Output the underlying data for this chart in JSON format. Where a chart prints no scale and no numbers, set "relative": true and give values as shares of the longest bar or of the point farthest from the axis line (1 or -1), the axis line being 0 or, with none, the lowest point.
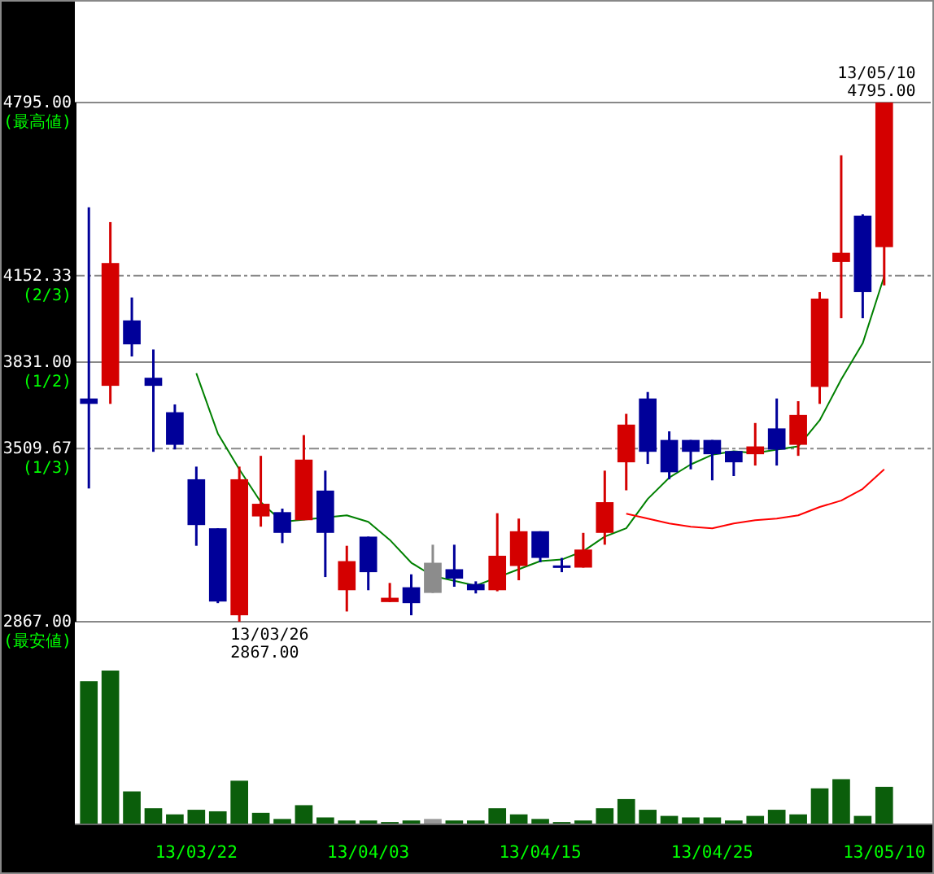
{
  "chart_data": [
    {
      "type": "candlestick",
      "categories": [
        null,
        null,
        null,
        null,
        null,
        null,
        null,
        null,
        null,
        null,
        null,
        null,
        null,
        null,
        null,
        null,
        null,
        null,
        null,
        null,
        null,
        null,
        null,
        null,
        null,
        null,
        null,
        null,
        null,
        null,
        null,
        null,
        null,
        null,
        null,
        null,
        null,
        null
      ],
      "ohlc": [
        [
          3696,
          4406,
          3362,
          3676
        ],
        [
          3743,
          4351,
          3676,
          4199
        ],
        [
          3986,
          4071,
          3852,
          3897
        ],
        [
          3773,
          3878,
          3498,
          3743
        ],
        [
          3645,
          3674,
          3507,
          3524
        ],
        [
          3396,
          3443,
          3149,
          3226
        ],
        [
          3214,
          3214,
          2936,
          2942
        ],
        [
          2891,
          3443,
          2867,
          3396
        ],
        [
          3258,
          3483,
          3220,
          3305
        ],
        [
          3274,
          3287,
          3159,
          3197
        ],
        [
          3244,
          3560,
          3244,
          3469
        ],
        [
          3354,
          3428,
          3033,
          3197
        ],
        [
          2984,
          3149,
          2905,
          3092
        ],
        [
          3183,
          3183,
          2984,
          3051
        ],
        [
          2940,
          3011,
          2940,
          2956
        ],
        [
          2995,
          3043,
          2891,
          2936
        ],
        [
          2974,
          3153,
          2974,
          3086
        ],
        [
          3062,
          3153,
          2997,
          3027
        ],
        [
          3007,
          3017,
          2972,
          2984
        ],
        [
          2984,
          3270,
          2980,
          3112
        ],
        [
          3074,
          3250,
          3021,
          3203
        ],
        [
          3203,
          3203,
          3088,
          3104
        ],
        [
          3076,
          3104,
          3051,
          3072
        ],
        [
          3068,
          3197,
          3068,
          3135
        ],
        [
          3197,
          3428,
          3153,
          3311
        ],
        [
          3459,
          3639,
          3355,
          3599
        ],
        [
          3696,
          3720,
          3453,
          3498
        ],
        [
          3542,
          3574,
          3396,
          3422
        ],
        [
          3542,
          3542,
          3433,
          3498
        ],
        [
          3542,
          3542,
          3392,
          3489
        ],
        [
          3501,
          3501,
          3408,
          3459
        ],
        [
          3489,
          3605,
          3447,
          3518
        ],
        [
          3585,
          3696,
          3447,
          3506
        ],
        [
          3524,
          3686,
          3483,
          3635
        ],
        [
          3739,
          4091,
          3676,
          4067
        ],
        [
          4203,
          4599,
          3994,
          4237
        ],
        [
          4375,
          4380,
          3994,
          4091
        ],
        [
          4258,
          4795,
          4116,
          4795
        ]
      ],
      "colors": [
        "#000099",
        "#d40000",
        "#000099",
        "#000099",
        "#000099",
        "#000099",
        "#000099",
        "#d40000",
        "#d40000",
        "#000099",
        "#d40000",
        "#000099",
        "#d40000",
        "#000099",
        "#d40000",
        "#000099",
        "#8c8c8c",
        "#000099",
        "#000099",
        "#d40000",
        "#d40000",
        "#000099",
        "#000099",
        "#d40000",
        "#d40000",
        "#d40000",
        "#000099",
        "#000099",
        "#000099",
        "#000099",
        "#000099",
        "#d40000",
        "#000099",
        "#d40000",
        "#d40000",
        "#d40000",
        "#000099",
        "#d40000"
      ],
      "series": [
        {
          "type": "line",
          "color": "#008000",
          "values": [
            null,
            null,
            null,
            null,
            null,
            3790,
            3566,
            3433,
            3311,
            3238,
            null,
            null,
            3262,
            3238,
            3171,
            3086,
            3037,
            3019,
            3001,
            null,
            3062,
            3092,
            3098,
            3129,
            3183,
            3214,
            3323,
            3402,
            3451,
            3487,
            3500,
            3493,
            3506,
            3518,
            3615,
            3767,
            3901,
            4150
          ]
        },
        {
          "type": "line",
          "color": "#ff0000",
          "values": [
            null,
            null,
            null,
            null,
            null,
            null,
            null,
            null,
            null,
            null,
            null,
            null,
            null,
            null,
            null,
            null,
            null,
            null,
            null,
            null,
            null,
            null,
            null,
            null,
            null,
            3268,
            3250,
            3232,
            3220,
            3214,
            3232,
            3244,
            3250,
            3262,
            3293,
            3317,
            3360,
            3433
          ]
        }
      ],
      "ylim": [
        2867,
        4795
      ],
      "yticks": [
        {
          "value": 2867,
          "label": "2867.00\n(最安値)"
        },
        {
          "value": 3509.67,
          "label": "3509.67\n(1/3)"
        },
        {
          "value": 3831,
          "label": "3831.00\n(1/2)"
        },
        {
          "value": 4152.33,
          "label": "4152.33\n(2/3)"
        },
        {
          "value": 4795,
          "label": "4795.00\n(最高値)"
        }
      ],
      "grid": "y",
      "tick_labels": "y",
      "ref_lines": [
        {
          "axis": "y",
          "value": 3831,
          "color": "#888888",
          "line_style": "solid"
        }
      ],
      "annotations": [
        "13/03/26\n2867.00",
        "13/05/10\n4795.00"
      ]
    },
    {
      "type": "bar",
      "relative": true,
      "categories": [
        null,
        null,
        null,
        null,
        null,
        "13/03/22",
        null,
        null,
        null,
        null,
        null,
        null,
        null,
        "13/04/03",
        null,
        null,
        null,
        null,
        null,
        null,
        null,
        "13/04/15",
        null,
        null,
        null,
        null,
        null,
        null,
        null,
        "13/04/25",
        null,
        null,
        null,
        null,
        null,
        null,
        null,
        "13/05/10"
      ],
      "values": [
        0.93,
        1,
        0.21,
        0.1,
        0.06,
        0.09,
        0.08,
        0.28,
        0.07,
        0.03,
        0.12,
        0.04,
        0.02,
        0.02,
        0.01,
        0.02,
        0.03,
        0.02,
        0.02,
        0.1,
        0.06,
        0.03,
        0.01,
        0.02,
        0.1,
        0.16,
        0.09,
        0.05,
        0.04,
        0.04,
        0.02,
        0.05,
        0.09,
        0.06,
        0.23,
        0.29,
        0.05,
        0.24
      ],
      "colors": [
        "#0b5e0b",
        "#0b5e0b",
        "#0b5e0b",
        "#0b5e0b",
        "#0b5e0b",
        "#0b5e0b",
        "#0b5e0b",
        "#0b5e0b",
        "#0b5e0b",
        "#0b5e0b",
        "#0b5e0b",
        "#0b5e0b",
        "#0b5e0b",
        "#0b5e0b",
        "#0b5e0b",
        "#0b5e0b",
        "#999999",
        "#0b5e0b",
        "#0b5e0b",
        "#0b5e0b",
        "#0b5e0b",
        "#0b5e0b",
        "#0b5e0b",
        "#0b5e0b",
        "#0b5e0b",
        "#0b5e0b",
        "#0b5e0b",
        "#0b5e0b",
        "#0b5e0b",
        "#0b5e0b",
        "#0b5e0b",
        "#0b5e0b",
        "#0b5e0b",
        "#0b5e0b",
        "#0b5e0b",
        "#0b5e0b",
        "#0b5e0b",
        "#0b5e0b"
      ],
      "tick_labels": "x"
    }
  ]
}
